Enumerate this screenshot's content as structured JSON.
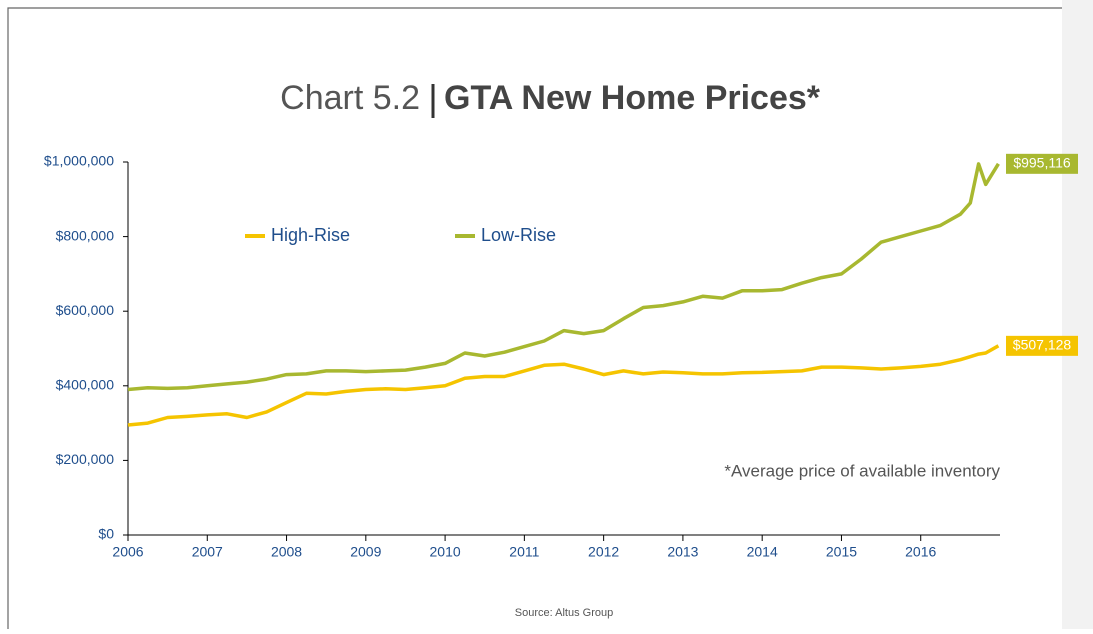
{
  "chart_data": {
    "type": "line",
    "title_prefix": "Chart 5.2",
    "title": "GTA New Home Prices*",
    "note": "*Average price of available inventory",
    "source": "Source: Altus Group",
    "x": [
      2006,
      2006.25,
      2006.5,
      2006.75,
      2007,
      2007.25,
      2007.5,
      2007.75,
      2008,
      2008.25,
      2008.5,
      2008.75,
      2009,
      2009.25,
      2009.5,
      2009.75,
      2010,
      2010.25,
      2010.5,
      2010.75,
      2011,
      2011.25,
      2011.5,
      2011.75,
      2012,
      2012.25,
      2012.5,
      2012.75,
      2013,
      2013.25,
      2013.5,
      2013.75,
      2014,
      2014.25,
      2014.5,
      2014.75,
      2015,
      2015.25,
      2015.5,
      2015.75,
      2016,
      2016.25,
      2016.5,
      2016.625,
      2016.73,
      2016.82,
      2016.98
    ],
    "series": [
      {
        "name": "High-Rise",
        "color": "#f5c400",
        "value_label": "$507,128",
        "values": [
          295000,
          300000,
          315000,
          318000,
          322000,
          325000,
          315000,
          330000,
          355000,
          380000,
          378000,
          385000,
          390000,
          392000,
          390000,
          395000,
          400000,
          420000,
          425000,
          425000,
          440000,
          455000,
          458000,
          445000,
          430000,
          440000,
          432000,
          437000,
          435000,
          432000,
          432000,
          435000,
          436000,
          438000,
          440000,
          450000,
          450000,
          448000,
          445000,
          448000,
          452000,
          458000,
          470000,
          478000,
          485000,
          488000,
          507128
        ]
      },
      {
        "name": "Low-Rise",
        "color": "#a8b830",
        "value_label": "$995,116",
        "values": [
          390000,
          395000,
          393000,
          395000,
          400000,
          405000,
          410000,
          418000,
          430000,
          432000,
          440000,
          440000,
          438000,
          440000,
          442000,
          450000,
          460000,
          488000,
          480000,
          490000,
          505000,
          520000,
          548000,
          540000,
          548000,
          580000,
          610000,
          615000,
          625000,
          640000,
          635000,
          655000,
          655000,
          658000,
          675000,
          690000,
          700000,
          740000,
          785000,
          800000,
          815000,
          830000,
          860000,
          890000,
          995000,
          940000,
          995116
        ]
      }
    ],
    "xlim": [
      2006,
      2017
    ],
    "xticks": [
      2006,
      2007,
      2008,
      2009,
      2010,
      2011,
      2012,
      2013,
      2014,
      2015,
      2016
    ],
    "ylim": [
      0,
      1000000
    ],
    "yticks": [
      {
        "value": 0,
        "label": "$0"
      },
      {
        "value": 200000,
        "label": "$200,000"
      },
      {
        "value": 400000,
        "label": "$400,000"
      },
      {
        "value": 600000,
        "label": "$600,000"
      },
      {
        "value": 800000,
        "label": "$800,000"
      },
      {
        "value": 1000000,
        "label": "$1,000,000"
      }
    ]
  }
}
